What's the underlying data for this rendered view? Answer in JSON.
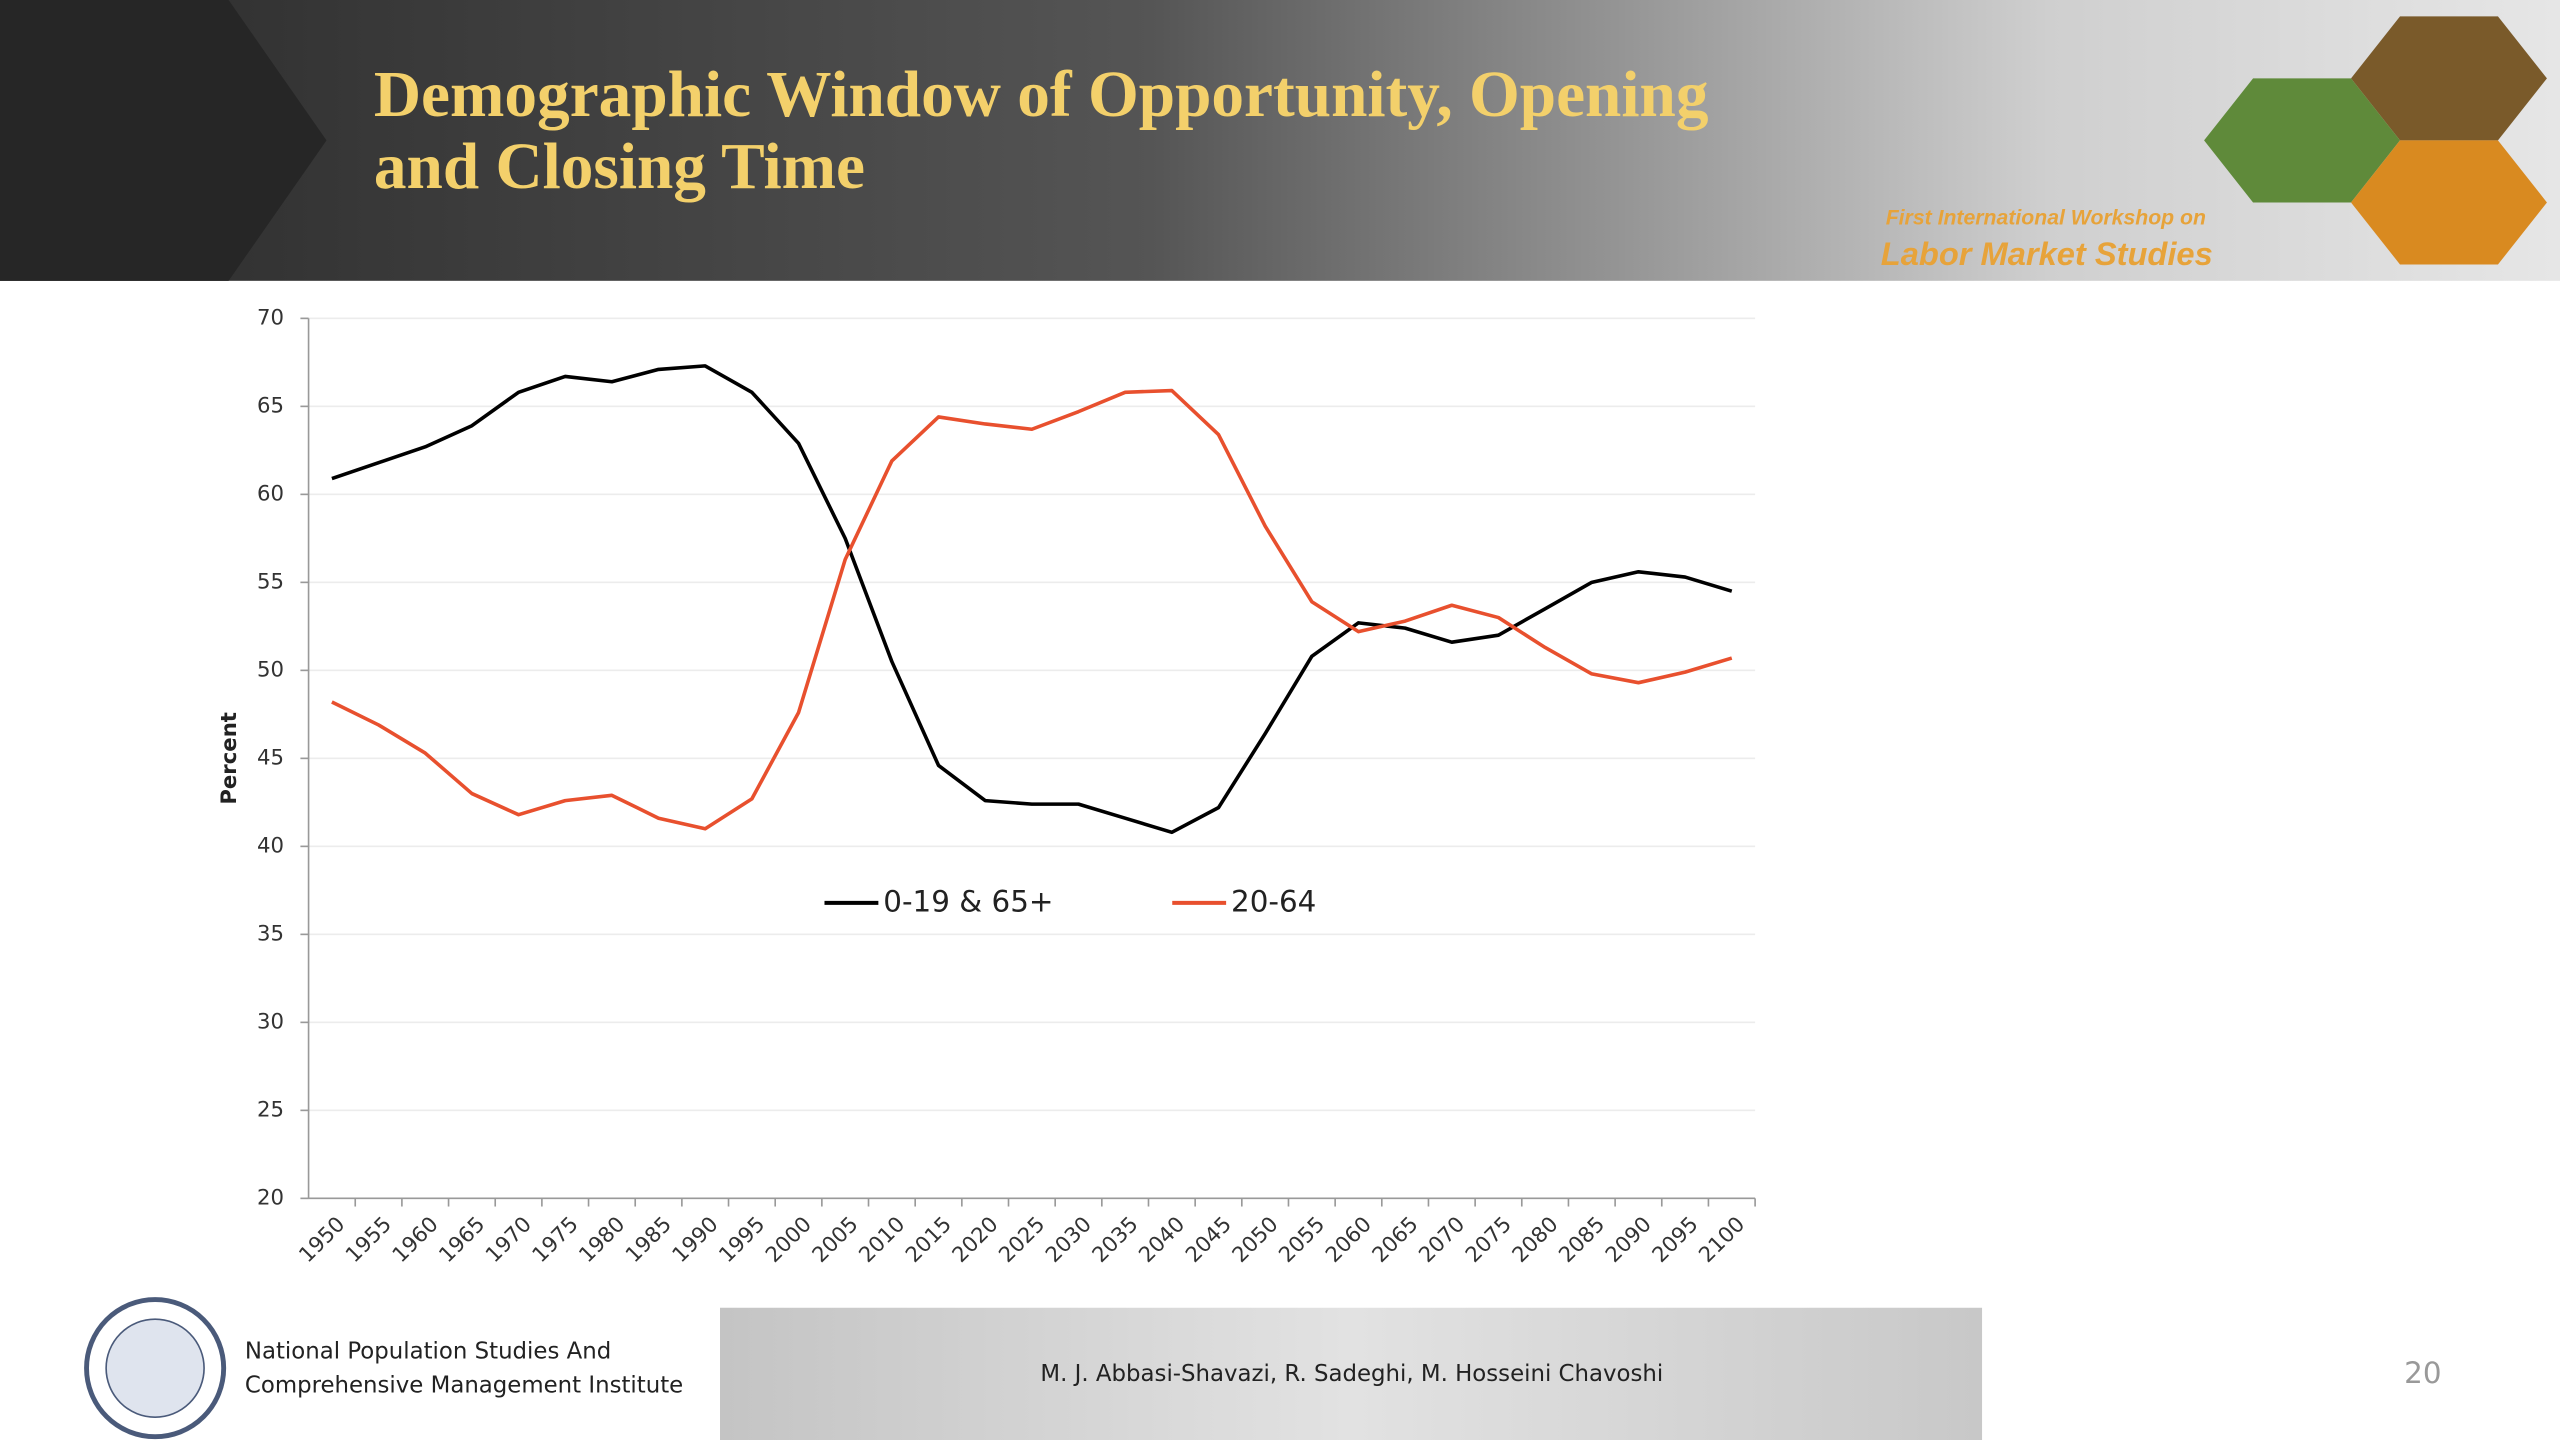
{
  "header": {
    "title_lines": [
      "Demographic Window of Opportunity, Opening",
      "and Closing Time"
    ],
    "workshop_lines": [
      "First International Workshop on",
      "Labor Market Studies"
    ]
  },
  "chart_data": {
    "type": "line",
    "ylabel": "Percent",
    "categories": [
      "1950",
      "1955",
      "1960",
      "1965",
      "1970",
      "1975",
      "1980",
      "1985",
      "1990",
      "1995",
      "2000",
      "2005",
      "2010",
      "2015",
      "2020",
      "2025",
      "2030",
      "2035",
      "2040",
      "2045",
      "2050",
      "2055",
      "2060",
      "2065",
      "2070",
      "2075",
      "2080",
      "2085",
      "2090",
      "2095",
      "2100"
    ],
    "series": [
      {
        "name": "0-19 & 65+",
        "color": "#000000",
        "values": [
          60.9,
          61.8,
          62.7,
          63.9,
          65.8,
          66.7,
          66.4,
          67.1,
          67.3,
          65.8,
          62.9,
          57.5,
          50.5,
          44.6,
          42.6,
          42.4,
          42.4,
          41.6,
          40.8,
          42.2,
          46.4,
          50.8,
          52.7,
          52.4,
          51.6,
          52.0,
          53.5,
          55.0,
          55.6,
          55.3,
          54.5
        ]
      },
      {
        "name": "20-64",
        "color": "#e8502e",
        "values": [
          48.2,
          46.9,
          45.3,
          43.0,
          41.8,
          42.6,
          42.9,
          41.6,
          41.0,
          42.7,
          47.6,
          56.3,
          61.9,
          64.4,
          64.0,
          63.7,
          64.7,
          65.8,
          65.9,
          63.4,
          58.2,
          53.9,
          52.2,
          52.8,
          53.7,
          53.0,
          51.3,
          49.8,
          49.3,
          49.9,
          50.7
        ]
      }
    ],
    "ylim": [
      20,
      70
    ],
    "yticks": [
      20,
      25,
      30,
      35,
      40,
      45,
      50,
      55,
      60,
      65,
      70
    ],
    "grid": true
  },
  "footer": {
    "institute_lines": [
      "National Population Studies And",
      "Comprehensive Management Institute"
    ],
    "authors": "M. J. Abbasi-Shavazi, R. Sadeghi, M. Hosseini Chavoshi",
    "page_number": "20"
  }
}
